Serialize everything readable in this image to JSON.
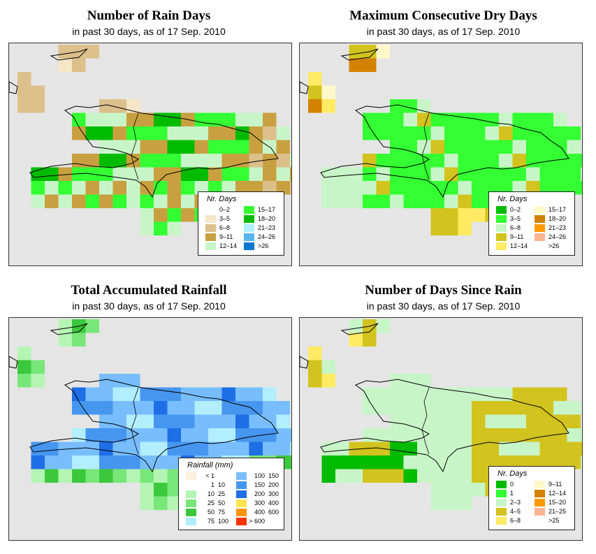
{
  "panels": [
    {
      "id": "rain-days",
      "title": "Number of Rain Days",
      "subtitle": "in past 30 days, as of  17 Sep. 2010",
      "legend": {
        "title": "Nr. Days",
        "items": [
          {
            "label": "0–2",
            "color": "#ffffff"
          },
          {
            "label": "3–5",
            "color": "#f5e6c8"
          },
          {
            "label": "6–8",
            "color": "#dcc08c"
          },
          {
            "label": "9–11",
            "color": "#c9a040"
          },
          {
            "label": "12–14",
            "color": "#c8f5c8"
          },
          {
            "label": "15–17",
            "color": "#33ff33"
          },
          {
            "label": "18–20",
            "color": "#00bb00"
          },
          {
            "label": "21–23",
            "color": "#b2eefe"
          },
          {
            "label": "24–26",
            "color": "#5ab4f0"
          },
          {
            "label": ">26",
            "color": "#0a78d2"
          }
        ]
      }
    },
    {
      "id": "dry-days",
      "title": "Maximum Consecutive Dry Days",
      "subtitle": "in past 30 days, as of  17 Sep. 2010",
      "legend": {
        "title": "Nr. Days",
        "items": [
          {
            "label": "0–2",
            "color": "#00bb00"
          },
          {
            "label": "3–5",
            "color": "#33ff33"
          },
          {
            "label": "6–8",
            "color": "#c8f5c8"
          },
          {
            "label": "9–11",
            "color": "#d2c31e"
          },
          {
            "label": "12–14",
            "color": "#ffea64"
          },
          {
            "label": "15–17",
            "color": "#fff8c8"
          },
          {
            "label": "18–20",
            "color": "#d28200"
          },
          {
            "label": "21–23",
            "color": "#ff9b00"
          },
          {
            "label": "24–26",
            "color": "#fcb492"
          },
          {
            "label": ">26",
            "color": "#ffffff"
          }
        ]
      }
    },
    {
      "id": "rainfall",
      "title": "Total Accumulated Rainfall",
      "subtitle": "in past 30 days, as of  17 Sep. 2010",
      "legend": {
        "title": "Rainfall (mm)",
        "items": [
          {
            "label_a": "< 1",
            "label_b": "",
            "color": "#fbf0dc"
          },
          {
            "label_a": "1",
            "label_b": "10",
            "color": "#ffffff"
          },
          {
            "label_a": "10",
            "label_b": "25",
            "color": "#b4f5b4"
          },
          {
            "label_a": "25",
            "label_b": "50",
            "color": "#78e678"
          },
          {
            "label_a": "50",
            "label_b": "75",
            "color": "#3cc83c"
          },
          {
            "label_a": "75",
            "label_b": "100",
            "color": "#b2eefe"
          },
          {
            "label_a": "100",
            "label_b": "150",
            "color": "#78beff"
          },
          {
            "label_a": "150",
            "label_b": "200",
            "color": "#4696f0"
          },
          {
            "label_a": "200",
            "label_b": "300",
            "color": "#1e6ee6"
          },
          {
            "label_a": "300",
            "label_b": "400",
            "color": "#ffe650"
          },
          {
            "label_a": "400",
            "label_b": "600",
            "color": "#ff9600"
          },
          {
            "label_a": "> 600",
            "label_b": "",
            "color": "#ff3200"
          }
        ]
      }
    },
    {
      "id": "since-rain",
      "title": "Number of Days Since Rain",
      "subtitle": "in past 30 days, as of  17 Sep. 2010",
      "legend": {
        "title": "Nr. Days",
        "items": [
          {
            "label": "0",
            "color": "#00bb00"
          },
          {
            "label": "1",
            "color": "#33ff33"
          },
          {
            "label": "2–3",
            "color": "#c8f5c8"
          },
          {
            "label": "4–5",
            "color": "#d2c31e"
          },
          {
            "label": "6–8",
            "color": "#ffea64"
          },
          {
            "label": "9–11",
            "color": "#fff8c8"
          },
          {
            "label": "12–14",
            "color": "#d28200"
          },
          {
            "label": "15–20",
            "color": "#ff9b00"
          },
          {
            "label": "21–25",
            "color": "#fcb492"
          },
          {
            "label": ">25",
            "color": "#ffffff"
          }
        ]
      }
    }
  ]
}
